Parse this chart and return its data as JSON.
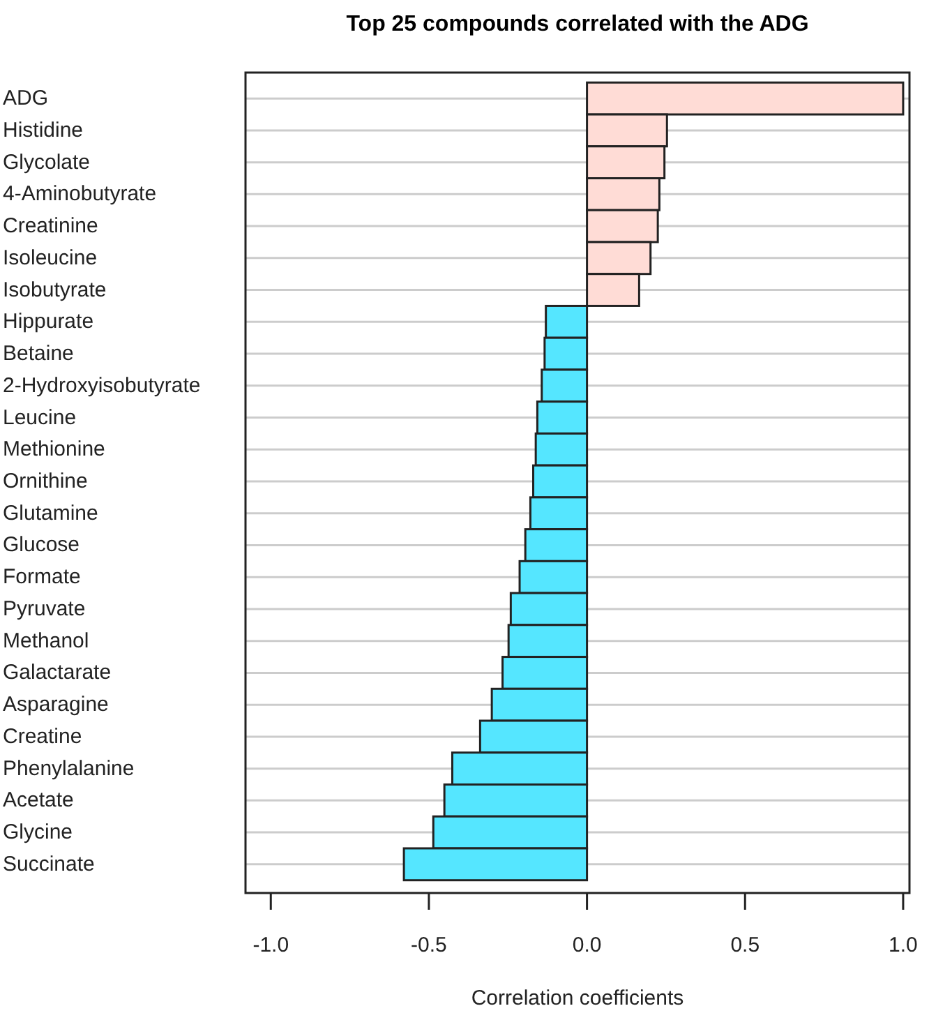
{
  "chart_data": {
    "type": "bar",
    "orientation": "horizontal",
    "title": "Top 25 compounds correlated with the ADG",
    "xlabel": "Correlation coefficients",
    "categories": [
      "ADG",
      "Histidine",
      "Glycolate",
      "4-Aminobutyrate",
      "Creatinine",
      "Isoleucine",
      "Isobutyrate",
      "Hippurate",
      "Betaine",
      "2-Hydroxyisobutyrate",
      "Leucine",
      "Methionine",
      "Ornithine",
      "Glutamine",
      "Glucose",
      "Formate",
      "Pyruvate",
      "Methanol",
      "Galactarate",
      "Asparagine",
      "Creatine",
      "Phenylalanine",
      "Acetate",
      "Glycine",
      "Succinate"
    ],
    "values": [
      1.0,
      0.253,
      0.245,
      0.229,
      0.224,
      0.201,
      0.165,
      -0.13,
      -0.134,
      -0.143,
      -0.157,
      -0.162,
      -0.17,
      -0.179,
      -0.195,
      -0.213,
      -0.241,
      -0.248,
      -0.267,
      -0.301,
      -0.338,
      -0.426,
      -0.451,
      -0.486,
      -0.579
    ],
    "colors": [
      "#ffdcd6",
      "#ffdcd6",
      "#ffdcd6",
      "#ffdcd6",
      "#ffdcd6",
      "#ffdcd6",
      "#ffdcd6",
      "#55e6ff",
      "#55e6ff",
      "#55e6ff",
      "#55e6ff",
      "#55e6ff",
      "#55e6ff",
      "#55e6ff",
      "#55e6ff",
      "#55e6ff",
      "#55e6ff",
      "#55e6ff",
      "#55e6ff",
      "#55e6ff",
      "#55e6ff",
      "#55e6ff",
      "#55e6ff",
      "#55e6ff",
      "#55e6ff"
    ],
    "xlim": [
      -1.08,
      1.02
    ],
    "xticks": [
      {
        "value": -1,
        "label": "-1.0"
      },
      {
        "value": -0.5,
        "label": "-0.5"
      },
      {
        "value": 0,
        "label": "0.0"
      },
      {
        "value": 0.5,
        "label": "0.5"
      },
      {
        "value": 1,
        "label": "1.0"
      }
    ],
    "grid": "y"
  }
}
